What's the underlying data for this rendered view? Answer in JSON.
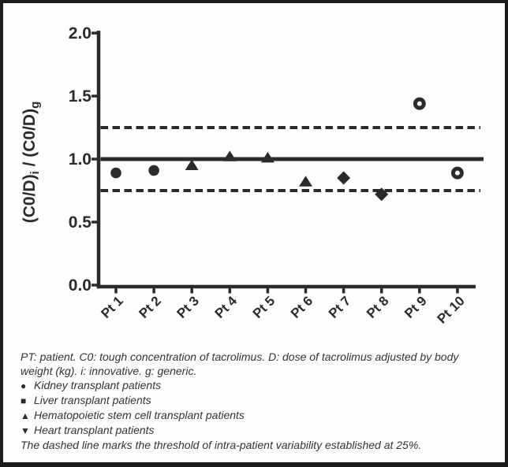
{
  "figure": {
    "background": "#fefefe",
    "border_color": "#1c1c1c",
    "ink_color": "#2b2b2b",
    "text_color": "#333333"
  },
  "chart_data": {
    "type": "scatter",
    "title": "",
    "xlabel": "",
    "ylabel": "(C0/D)i / (C0/D)g",
    "ylabel_parts": [
      {
        "t": "(C0/D)",
        "sub": false
      },
      {
        "t": "i",
        "sub": true
      },
      {
        "t": " / (C0/D)",
        "sub": false
      },
      {
        "t": "g",
        "sub": true
      }
    ],
    "categories": [
      "Pt 1",
      "Pt 2",
      "Pt 3",
      "Pt 4",
      "Pt 5",
      "Pt 6",
      "Pt 7",
      "Pt 8",
      "Pt 9",
      "Pt 10"
    ],
    "values": [
      0.89,
      0.91,
      0.95,
      1.02,
      1.01,
      0.82,
      0.85,
      0.72,
      1.44,
      0.89
    ],
    "markers": [
      "filled-circle",
      "filled-circle",
      "filled-triangle-up",
      "filled-triangle-up",
      "filled-triangle-up",
      "filled-triangle-up",
      "filled-diamond",
      "filled-diamond",
      "open-circle",
      "open-circle"
    ],
    "yticks": [
      0.0,
      0.5,
      1.0,
      1.5,
      2.0
    ],
    "ytick_labels": [
      "0.0",
      "0.5",
      "1.0",
      "1.5",
      "2.0"
    ],
    "ylim": [
      0.0,
      2.0
    ],
    "grid": false,
    "reference_line": 1.0,
    "threshold_lines": [
      1.25,
      0.75
    ],
    "threshold_line_style": "dashed",
    "legend_position": "caption-below",
    "marker_legend": [
      {
        "marker": "circle",
        "label": "Kidney transplant patients"
      },
      {
        "marker": "square",
        "label": "Liver transplant patients"
      },
      {
        "marker": "triangle-up",
        "label": "Hematopoietic stem cell transplant patients"
      },
      {
        "marker": "triangle-down",
        "label": "Heart transplant patients"
      }
    ]
  },
  "footnote": {
    "lines": [
      {
        "bullet": "",
        "bullet_name": "",
        "text": "PT: patient. C0: tough concentration of tacrolimus. D: dose of tacrolimus adjusted by body"
      },
      {
        "bullet": "",
        "bullet_name": "",
        "text": "weight (kg). i: innovative. g: generic."
      },
      {
        "bullet": "●",
        "bullet_name": "kidney-circle-icon",
        "text": "Kidney transplant patients"
      },
      {
        "bullet": "■",
        "bullet_name": "liver-square-icon",
        "text": "Liver transplant patients"
      },
      {
        "bullet": "▲",
        "bullet_name": "hsct-triangle-up-icon",
        "text": "Hematopoietic stem cell transplant patients"
      },
      {
        "bullet": "▼",
        "bullet_name": "heart-triangle-down-icon",
        "text": "Heart transplant patients"
      },
      {
        "bullet": "",
        "bullet_name": "",
        "text": "The dashed line marks the threshold of intra-patient variability established at 25%."
      }
    ]
  }
}
